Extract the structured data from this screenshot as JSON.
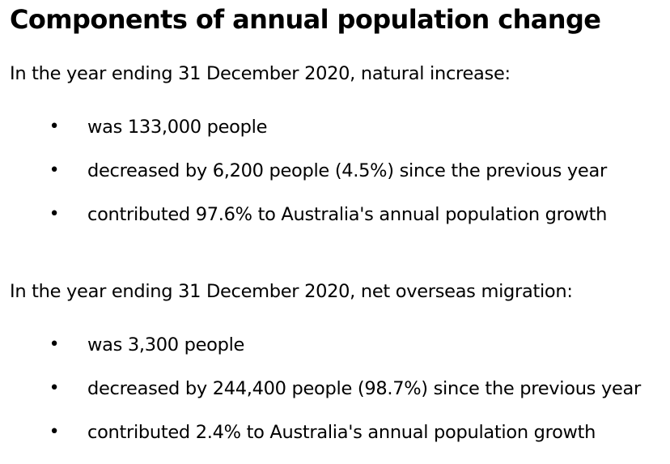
{
  "heading": "Components of annual population change",
  "sections": [
    {
      "intro": "In the year ending 31 December 2020, natural increase:",
      "items": [
        "was 133,000 people",
        "decreased by 6,200 people (4.5%) since the previous year",
        "contributed 97.6% to Australia's annual population growth"
      ]
    },
    {
      "intro": "In the year ending 31 December 2020, net overseas migration:",
      "items": [
        "was 3,300 people",
        "decreased by 244,400 people (98.7%) since the previous year",
        "contributed 2.4% to Australia's annual population growth"
      ]
    }
  ],
  "bullet_glyph": "•"
}
